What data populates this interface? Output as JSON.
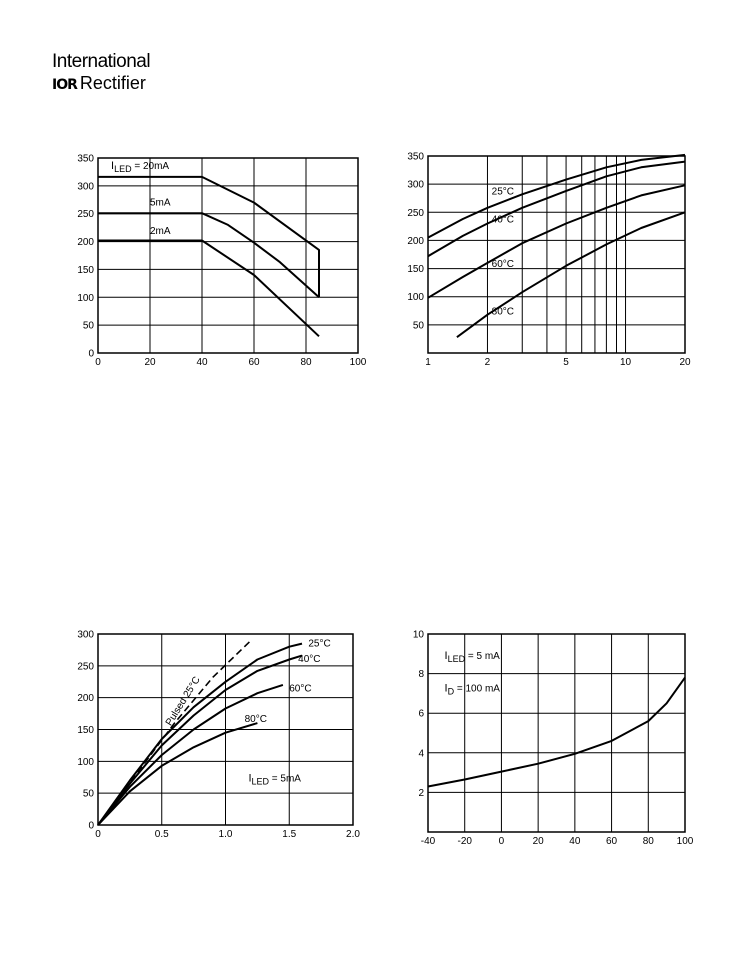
{
  "header": {
    "brand_line1": "International",
    "brand_mark": "IOR",
    "brand_line2": "Rectifier"
  },
  "chart_data": [
    {
      "type": "line",
      "scale": "linear",
      "x": {
        "min": 0,
        "max": 100,
        "ticks": [
          0,
          20,
          40,
          60,
          80,
          100
        ]
      },
      "y": {
        "min": 0,
        "max": 350,
        "ticks": [
          0,
          50,
          100,
          150,
          200,
          250,
          300,
          350
        ]
      },
      "xlabel": "",
      "ylabel": "",
      "grid_x": [
        20,
        40,
        60,
        80
      ],
      "grid_y": [
        50,
        100,
        150,
        200,
        250,
        300
      ],
      "series": [
        {
          "name": "20mA",
          "points": [
            [
              0,
              316
            ],
            [
              40,
              316
            ],
            [
              60,
              270
            ],
            [
              85,
              185
            ],
            [
              85,
              100
            ]
          ]
        },
        {
          "name": "5mA",
          "points": [
            [
              0,
              251
            ],
            [
              40,
              251
            ],
            [
              50,
              230
            ],
            [
              60,
              198
            ],
            [
              70,
              163
            ],
            [
              85,
              100
            ]
          ]
        },
        {
          "name": "2mA",
          "points": [
            [
              0,
              202
            ],
            [
              40,
              202
            ],
            [
              60,
              140
            ],
            [
              85,
              30
            ]
          ]
        }
      ],
      "labels": [
        {
          "prefix": "I",
          "sub": "LED",
          "suffix": " = 20mA",
          "x": 5,
          "y": 330
        },
        {
          "text": "5mA",
          "x": 20,
          "y": 265
        },
        {
          "text": "2mA",
          "x": 20,
          "y": 214
        }
      ]
    },
    {
      "type": "line",
      "scale": "logx",
      "x": {
        "min": 1,
        "max": 20,
        "ticks": [
          1,
          2,
          5,
          10,
          20
        ]
      },
      "y": {
        "min": 0,
        "max": 350,
        "ticks": [
          50,
          100,
          150,
          200,
          250,
          300,
          350
        ]
      },
      "xlabel": "",
      "ylabel": "",
      "grid_x": [
        2,
        3,
        4,
        5,
        6,
        7,
        8,
        9,
        10
      ],
      "grid_y": [
        50,
        100,
        150,
        200,
        250,
        300
      ],
      "series": [
        {
          "name": "25°C",
          "points": [
            [
              1,
              205
            ],
            [
              1.5,
              238
            ],
            [
              2,
              258
            ],
            [
              3,
              282
            ],
            [
              5,
              308
            ],
            [
              8,
              330
            ],
            [
              12,
              343
            ],
            [
              20,
              352
            ]
          ]
        },
        {
          "name": "40°C",
          "points": [
            [
              1,
              172
            ],
            [
              1.5,
              208
            ],
            [
              2,
              230
            ],
            [
              3,
              258
            ],
            [
              5,
              288
            ],
            [
              8,
              314
            ],
            [
              12,
              330
            ],
            [
              20,
              340
            ]
          ]
        },
        {
          "name": "60°C",
          "points": [
            [
              1,
              98
            ],
            [
              1.5,
              135
            ],
            [
              2,
              160
            ],
            [
              3,
              195
            ],
            [
              5,
              230
            ],
            [
              8,
              258
            ],
            [
              12,
              280
            ],
            [
              20,
              298
            ]
          ]
        },
        {
          "name": "80°C",
          "points": [
            [
              1.4,
              28
            ],
            [
              2,
              68
            ],
            [
              3,
              108
            ],
            [
              5,
              155
            ],
            [
              8,
              193
            ],
            [
              12,
              222
            ],
            [
              20,
              250
            ]
          ]
        }
      ],
      "labels": [
        {
          "text": "25°C",
          "x": 2.1,
          "y": 282
        },
        {
          "text": "40°C",
          "x": 2.1,
          "y": 232
        },
        {
          "text": "60°C",
          "x": 2.1,
          "y": 153
        },
        {
          "text": "80°C",
          "x": 2.1,
          "y": 68
        }
      ]
    },
    {
      "type": "line",
      "scale": "linear",
      "x": {
        "min": 0,
        "max": 2.0,
        "ticks": [
          0,
          0.5,
          1.0,
          1.5,
          2.0
        ],
        "tick_labels": [
          "0",
          "0.5",
          "1.0",
          "1.5",
          "2.0"
        ]
      },
      "y": {
        "min": 0,
        "max": 300,
        "ticks": [
          0,
          50,
          100,
          150,
          200,
          250,
          300
        ]
      },
      "xlabel": "",
      "ylabel": "",
      "grid_x": [
        0.5,
        1.0,
        1.5
      ],
      "grid_y": [
        50,
        100,
        150,
        200,
        250
      ],
      "series": [
        {
          "name": "Pulsed 25°C",
          "dashed": true,
          "points": [
            [
              0,
              0
            ],
            [
              0.3,
              80
            ],
            [
              0.6,
              160
            ],
            [
              0.9,
              232
            ],
            [
              1.2,
              290
            ]
          ]
        },
        {
          "name": "25°C",
          "points": [
            [
              0,
              0
            ],
            [
              0.25,
              70
            ],
            [
              0.5,
              135
            ],
            [
              0.75,
              185
            ],
            [
              1.0,
              225
            ],
            [
              1.25,
              260
            ],
            [
              1.5,
              280
            ],
            [
              1.6,
              285
            ]
          ]
        },
        {
          "name": "40°C",
          "points": [
            [
              0,
              0
            ],
            [
              0.25,
              65
            ],
            [
              0.5,
              125
            ],
            [
              0.75,
              172
            ],
            [
              1.0,
              212
            ],
            [
              1.25,
              242
            ],
            [
              1.5,
              260
            ],
            [
              1.6,
              266
            ]
          ]
        },
        {
          "name": "60°C",
          "points": [
            [
              0,
              0
            ],
            [
              0.25,
              60
            ],
            [
              0.5,
              110
            ],
            [
              0.75,
              150
            ],
            [
              1.0,
              183
            ],
            [
              1.25,
              207
            ],
            [
              1.45,
              220
            ]
          ]
        },
        {
          "name": "80°C",
          "points": [
            [
              0,
              0
            ],
            [
              0.25,
              53
            ],
            [
              0.5,
              93
            ],
            [
              0.75,
              122
            ],
            [
              1.0,
              145
            ],
            [
              1.25,
              160
            ]
          ]
        }
      ],
      "labels": [
        {
          "text": "25°C",
          "x": 1.65,
          "y": 280
        },
        {
          "text": "40°C",
          "x": 1.57,
          "y": 256
        },
        {
          "text": "60°C",
          "x": 1.5,
          "y": 210
        },
        {
          "text": "80°C",
          "x": 1.15,
          "y": 162
        },
        {
          "text": "Pulsed 25°C",
          "x": 0.57,
          "y": 155,
          "rotate": -58
        },
        {
          "prefix": "I",
          "sub": "LED",
          "suffix": " = 5mA",
          "x": 1.18,
          "y": 68
        }
      ]
    },
    {
      "type": "line",
      "scale": "linear",
      "x": {
        "min": -40,
        "max": 100,
        "ticks": [
          -40,
          -20,
          0,
          20,
          40,
          60,
          80,
          100
        ]
      },
      "y": {
        "min": 0,
        "max": 10,
        "ticks": [
          2,
          4,
          6,
          8,
          10
        ]
      },
      "xlabel": "",
      "ylabel": "",
      "grid_x": [
        -20,
        0,
        20,
        40,
        60,
        80
      ],
      "grid_y": [
        2,
        4,
        6,
        8
      ],
      "series": [
        {
          "name": "I_LED = 5 mA, I_D = 100 mA",
          "points": [
            [
              -40,
              2.3
            ],
            [
              -20,
              2.65
            ],
            [
              0,
              3.05
            ],
            [
              20,
              3.45
            ],
            [
              40,
              3.95
            ],
            [
              60,
              4.6
            ],
            [
              80,
              5.6
            ],
            [
              90,
              6.5
            ],
            [
              100,
              7.8
            ]
          ]
        }
      ],
      "labels": [
        {
          "prefix": "I",
          "sub": "LED",
          "suffix": " = 5  mA",
          "x": -31,
          "y": 8.75
        },
        {
          "prefix": "I",
          "sub": "D",
          "suffix": " = 100  mA",
          "x": -31,
          "y": 7.1
        }
      ]
    }
  ]
}
